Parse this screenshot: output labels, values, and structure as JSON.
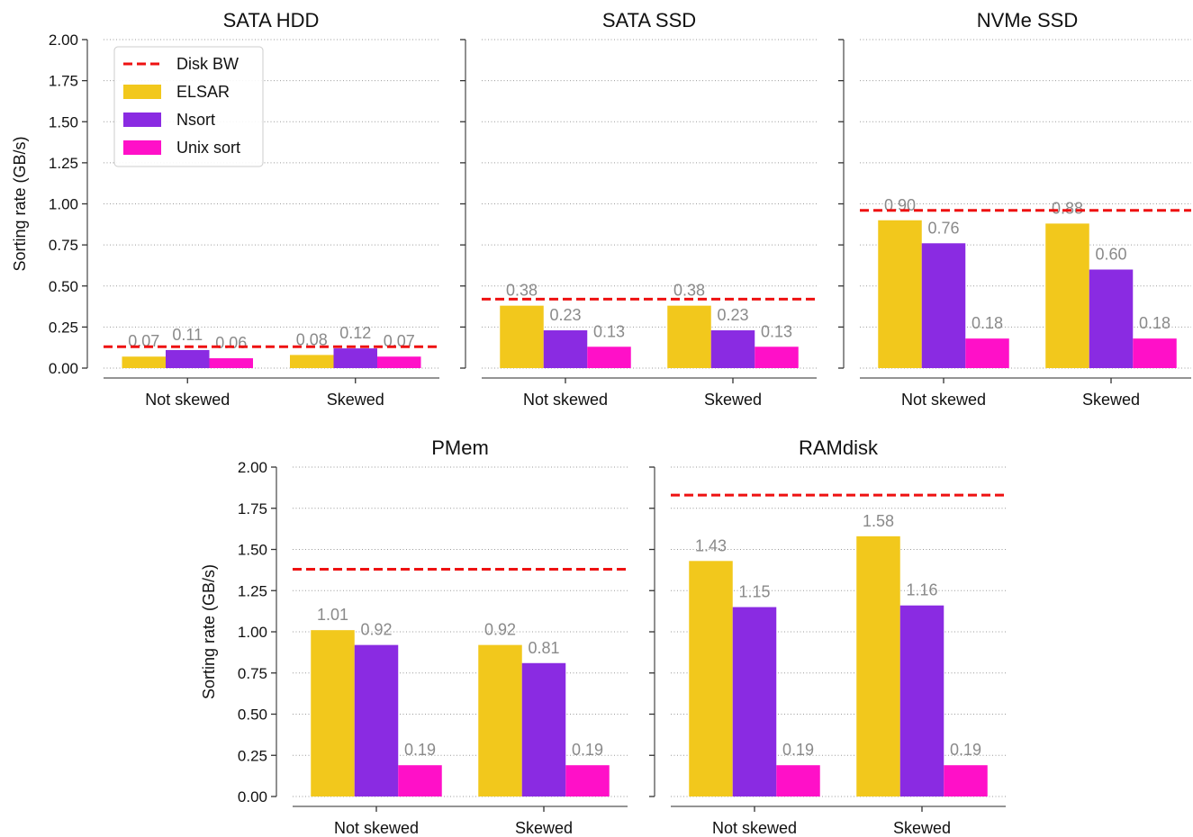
{
  "figure": {
    "ylabel": "Sorting rate (GB/s)",
    "legend": {
      "placement": "top-left of first panel",
      "entries": [
        {
          "label": "Disk BW",
          "kind": "dashed-line",
          "color": "#ee1111"
        },
        {
          "label": "ELSAR",
          "kind": "bar",
          "color": "#f2c81c"
        },
        {
          "label": "Nsort",
          "kind": "bar",
          "color": "#8a2be2"
        },
        {
          "label": "Unix sort",
          "kind": "bar",
          "color": "#ff10c8"
        }
      ]
    }
  },
  "chart_data": [
    {
      "type": "bar",
      "title": "SATA HDD",
      "ylabel": "Sorting rate (GB/s)",
      "ylim": [
        0,
        2.0
      ],
      "yticks": [
        "0.00",
        "0.25",
        "0.50",
        "0.75",
        "1.00",
        "1.25",
        "1.50",
        "1.75",
        "2.00"
      ],
      "grid": "horizontal dotted",
      "categories": [
        "Not skewed",
        "Skewed"
      ],
      "series": [
        {
          "name": "ELSAR",
          "values": [
            0.07,
            0.08
          ],
          "labels": [
            "0.07",
            "0.08"
          ]
        },
        {
          "name": "Nsort",
          "values": [
            0.11,
            0.12
          ],
          "labels": [
            "0.11",
            "0.12"
          ]
        },
        {
          "name": "Unix sort",
          "values": [
            0.06,
            0.07
          ],
          "labels": [
            "0.06",
            "0.07"
          ]
        }
      ],
      "disk_bw": 0.13
    },
    {
      "type": "bar",
      "title": "SATA SSD",
      "ylim": [
        0,
        2.0
      ],
      "grid": "horizontal dotted",
      "categories": [
        "Not skewed",
        "Skewed"
      ],
      "series": [
        {
          "name": "ELSAR",
          "values": [
            0.38,
            0.38
          ],
          "labels": [
            "0.38",
            "0.38"
          ]
        },
        {
          "name": "Nsort",
          "values": [
            0.23,
            0.23
          ],
          "labels": [
            "0.23",
            "0.23"
          ]
        },
        {
          "name": "Unix sort",
          "values": [
            0.13,
            0.13
          ],
          "labels": [
            "0.13",
            "0.13"
          ]
        }
      ],
      "disk_bw": 0.42
    },
    {
      "type": "bar",
      "title": "NVMe SSD",
      "ylim": [
        0,
        2.0
      ],
      "grid": "horizontal dotted",
      "categories": [
        "Not skewed",
        "Skewed"
      ],
      "series": [
        {
          "name": "ELSAR",
          "values": [
            0.9,
            0.88
          ],
          "labels": [
            "0.90",
            "0.88"
          ]
        },
        {
          "name": "Nsort",
          "values": [
            0.76,
            0.6
          ],
          "labels": [
            "0.76",
            "0.60"
          ]
        },
        {
          "name": "Unix sort",
          "values": [
            0.18,
            0.18
          ],
          "labels": [
            "0.18",
            "0.18"
          ]
        }
      ],
      "disk_bw": 0.96
    },
    {
      "type": "bar",
      "title": "PMem",
      "ylabel": "Sorting rate (GB/s)",
      "ylim": [
        0,
        2.0
      ],
      "yticks": [
        "0.00",
        "0.25",
        "0.50",
        "0.75",
        "1.00",
        "1.25",
        "1.50",
        "1.75",
        "2.00"
      ],
      "grid": "horizontal dotted",
      "categories": [
        "Not skewed",
        "Skewed"
      ],
      "series": [
        {
          "name": "ELSAR",
          "values": [
            1.01,
            0.92
          ],
          "labels": [
            "1.01",
            "0.92"
          ]
        },
        {
          "name": "Nsort",
          "values": [
            0.92,
            0.81
          ],
          "labels": [
            "0.92",
            "0.81"
          ]
        },
        {
          "name": "Unix sort",
          "values": [
            0.19,
            0.19
          ],
          "labels": [
            "0.19",
            "0.19"
          ]
        }
      ],
      "disk_bw": 1.38
    },
    {
      "type": "bar",
      "title": "RAMdisk",
      "ylim": [
        0,
        2.0
      ],
      "grid": "horizontal dotted",
      "categories": [
        "Not skewed",
        "Skewed"
      ],
      "series": [
        {
          "name": "ELSAR",
          "values": [
            1.43,
            1.58
          ],
          "labels": [
            "1.43",
            "1.58"
          ]
        },
        {
          "name": "Nsort",
          "values": [
            1.15,
            1.16
          ],
          "labels": [
            "1.15",
            "1.16"
          ]
        },
        {
          "name": "Unix sort",
          "values": [
            0.19,
            0.19
          ],
          "labels": [
            "0.19",
            "0.19"
          ]
        }
      ],
      "disk_bw": 1.83
    }
  ]
}
